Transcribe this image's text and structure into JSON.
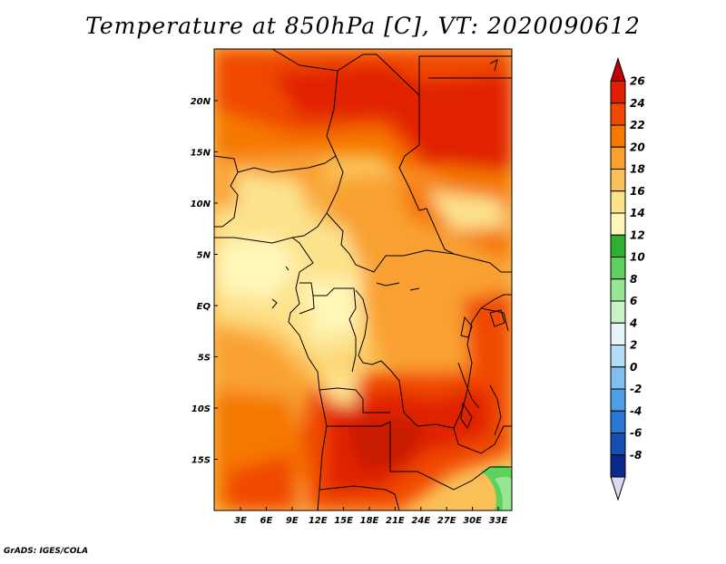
{
  "title": "Temperature at 850hPa [C], VT: 2020090612",
  "credit": "GrADS: IGES/COLA",
  "map": {
    "lon_labels": [
      "3E",
      "6E",
      "9E",
      "12E",
      "15E",
      "18E",
      "21E",
      "24E",
      "27E",
      "30E",
      "33E"
    ],
    "lat_labels": [
      "20N",
      "15N",
      "10N",
      "5N",
      "EQ",
      "5S",
      "10S",
      "15S"
    ]
  },
  "colorbar": {
    "labels": [
      "26",
      "24",
      "22",
      "20",
      "18",
      "16",
      "14",
      "12",
      "10",
      "8",
      "6",
      "4",
      "2",
      "0",
      "-2",
      "-4",
      "-6",
      "-8"
    ],
    "colors": [
      "#c00000",
      "#e02000",
      "#f04a00",
      "#f57800",
      "#f9a030",
      "#fbc058",
      "#fde28c",
      "#fff6b8",
      "#2fb02f",
      "#5ed05e",
      "#96e696",
      "#c8f3c8",
      "#e6f4fb",
      "#b4dcf5",
      "#82bff0",
      "#4f9fe6",
      "#2a78d4",
      "#1450b4",
      "#0a2a8c",
      "#000a5a"
    ]
  }
}
